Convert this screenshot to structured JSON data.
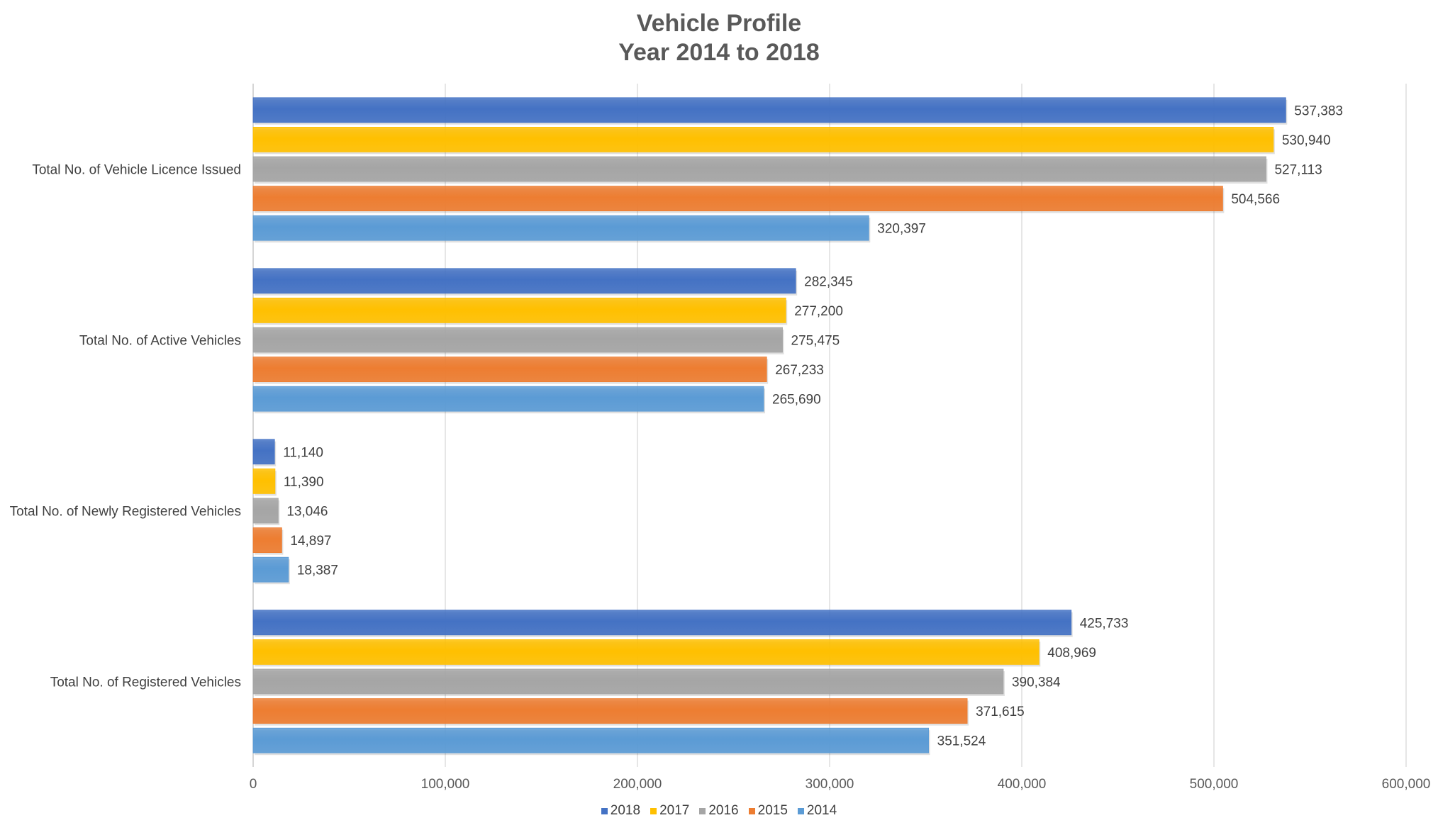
{
  "chart_data": {
    "type": "bar",
    "orientation": "horizontal",
    "title": [
      "Vehicle Profile",
      "Year 2014 to 2018"
    ],
    "xlabel": "",
    "ylabel": "",
    "xlim": [
      0,
      600000
    ],
    "x_ticks": [
      "0",
      "100,000",
      "200,000",
      "300,000",
      "400,000",
      "500,000",
      "600,000"
    ],
    "x_tick_values": [
      0,
      100000,
      200000,
      300000,
      400000,
      500000,
      600000
    ],
    "grid": true,
    "legend_position": "bottom",
    "categories": [
      "Total No. of Vehicle Licence Issued",
      "Total No. of Active Vehicles",
      "Total No. of Newly Registered Vehicles",
      "Total No. of Registered Vehicles"
    ],
    "series": [
      {
        "name": "2018",
        "color": "#4472C4",
        "values": [
          537383,
          282345,
          11140,
          425733
        ],
        "labels": [
          "537,383",
          "282,345",
          "11,140",
          "425,733"
        ]
      },
      {
        "name": "2017",
        "color": "#FFC000",
        "values": [
          530940,
          277200,
          11390,
          408969
        ],
        "labels": [
          "530,940",
          "277,200",
          "11,390",
          "408,969"
        ]
      },
      {
        "name": "2016",
        "color": "#A5A5A5",
        "values": [
          527113,
          275475,
          13046,
          390384
        ],
        "labels": [
          "527,113",
          "275,475",
          "13,046",
          "390,384"
        ]
      },
      {
        "name": "2015",
        "color": "#ED7D31",
        "values": [
          504566,
          267233,
          14897,
          371615
        ],
        "labels": [
          "504,566",
          "267,233",
          "14,897",
          "371,615"
        ]
      },
      {
        "name": "2014",
        "color": "#5B9BD5",
        "values": [
          320397,
          265690,
          18387,
          351524
        ],
        "labels": [
          "320,397",
          "265,690",
          "18,387",
          "351,524"
        ]
      }
    ]
  }
}
